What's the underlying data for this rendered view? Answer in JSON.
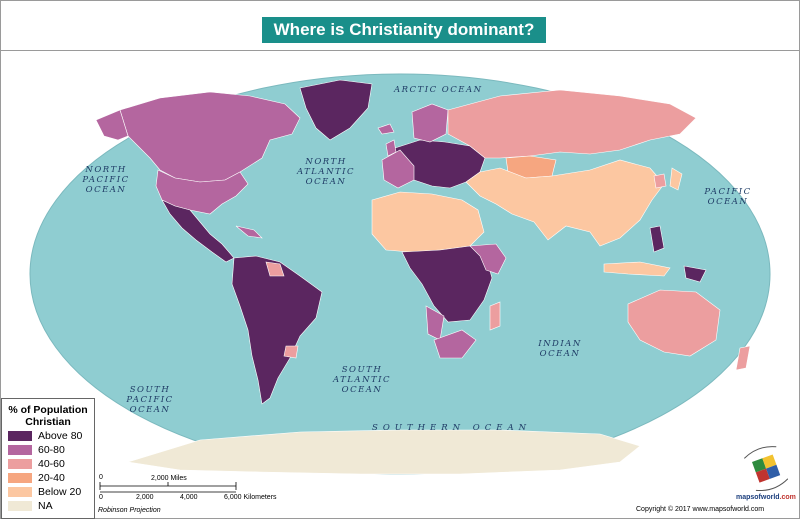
{
  "title": "Where is Christianity dominant?",
  "colors": {
    "ocean": "#8fcdd1",
    "above_80": "#5b2660",
    "c60_80": "#b4669f",
    "c40_60": "#ec9e9f",
    "c20_40": "#f6a680",
    "below_20": "#fcc7a1",
    "na": "#f0e9d6",
    "title_bg": "#1a8f8a",
    "label": "#1f3c66"
  },
  "ocean_labels": [
    {
      "name": "arctic",
      "text": "ARCTIC OCEAN"
    },
    {
      "name": "north-pacific",
      "lines": [
        "NORTH",
        "PACIFIC",
        "OCEAN"
      ]
    },
    {
      "name": "north-atlantic",
      "lines": [
        "NORTH",
        "ATLANTIC",
        "OCEAN"
      ]
    },
    {
      "name": "pacific",
      "lines": [
        "PACIFIC",
        "OCEAN"
      ]
    },
    {
      "name": "indian",
      "lines": [
        "INDIAN",
        "OCEAN"
      ]
    },
    {
      "name": "south-atlantic",
      "lines": [
        "SOUTH",
        "ATLANTIC",
        "OCEAN"
      ]
    },
    {
      "name": "south-pacific",
      "lines": [
        "SOUTH",
        "PACIFIC",
        "OCEAN"
      ]
    },
    {
      "name": "southern",
      "text": "SOUTHERN OCEAN"
    }
  ],
  "legend": {
    "title_line1": "% of Population",
    "title_line2": "Christian",
    "items": [
      {
        "label": "Above 80",
        "color": "#5b2660"
      },
      {
        "label": "60-80",
        "color": "#b4669f"
      },
      {
        "label": "40-60",
        "color": "#ec9e9f"
      },
      {
        "label": "20-40",
        "color": "#f6a680"
      },
      {
        "label": "Below 20",
        "color": "#fcc7a1"
      },
      {
        "label": "NA",
        "color": "#f0e9d6"
      }
    ]
  },
  "scale": {
    "miles_label": "2,000 Miles",
    "miles_zero": "0",
    "km_ticks": [
      "0",
      "2,000",
      "4,000",
      "6,000 Kilometers"
    ],
    "projection": "Robinson Projection"
  },
  "copyright": "Copyright © 2017 www.mapsofworld.com",
  "logo_text": "mapsofworld",
  "logo_suffix": ".com"
}
